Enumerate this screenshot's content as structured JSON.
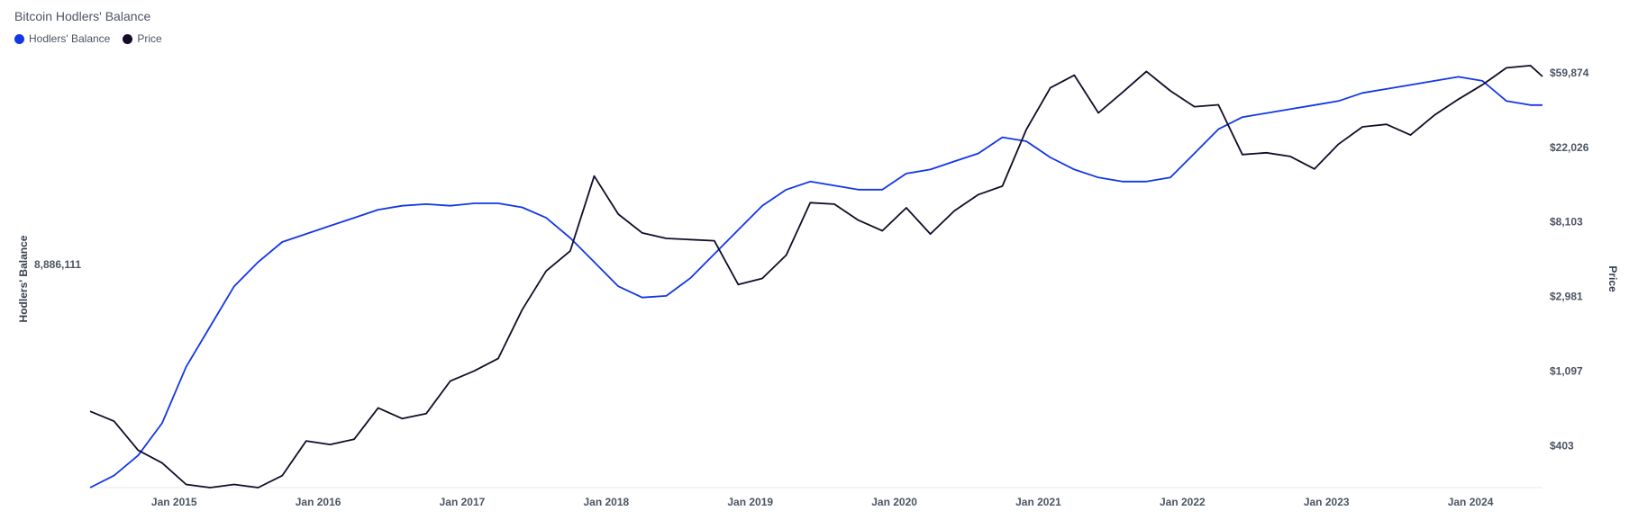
{
  "chart_data": {
    "type": "line",
    "title": "Bitcoin Hodlers' Balance",
    "colors": {
      "hodlers": "#1237e6",
      "price": "#150b28"
    },
    "x_axis": {
      "ticks": [
        "Jan 2015",
        "Jan 2016",
        "Jan 2017",
        "Jan 2018",
        "Jan 2019",
        "Jan 2020",
        "Jan 2021",
        "Jan 2022",
        "Jan 2023",
        "Jan 2024"
      ],
      "range": [
        "2014-06",
        "2024-07"
      ]
    },
    "y_left": {
      "label": "Hodlers' Balance",
      "tick_labels": [
        "8,886,111"
      ]
    },
    "y_right": {
      "label": "Price",
      "scale": "log",
      "tick_labels": [
        "$59,874",
        "$22,026",
        "$8,103",
        "$2,981",
        "$1,097",
        "$403"
      ],
      "tick_values": [
        59874,
        22026,
        8103,
        2981,
        1097,
        403
      ]
    },
    "series": [
      {
        "name": "Hodlers' Balance",
        "axis": "left",
        "points": [
          [
            "2014-06",
            6200000
          ],
          [
            "2014-08",
            6350000
          ],
          [
            "2014-10",
            6600000
          ],
          [
            "2014-12",
            7000000
          ],
          [
            "2015-02",
            7700000
          ],
          [
            "2015-04",
            8200000
          ],
          [
            "2015-06",
            8700000
          ],
          [
            "2015-08",
            9000000
          ],
          [
            "2015-10",
            9250000
          ],
          [
            "2015-12",
            9350000
          ],
          [
            "2016-02",
            9450000
          ],
          [
            "2016-04",
            9550000
          ],
          [
            "2016-06",
            9650000
          ],
          [
            "2016-08",
            9700000
          ],
          [
            "2016-10",
            9720000
          ],
          [
            "2016-12",
            9700000
          ],
          [
            "2017-02",
            9730000
          ],
          [
            "2017-04",
            9730000
          ],
          [
            "2017-06",
            9680000
          ],
          [
            "2017-08",
            9550000
          ],
          [
            "2017-10",
            9300000
          ],
          [
            "2017-12",
            9000000
          ],
          [
            "2018-02",
            8700000
          ],
          [
            "2018-04",
            8560000
          ],
          [
            "2018-06",
            8580000
          ],
          [
            "2018-08",
            8800000
          ],
          [
            "2018-10",
            9100000
          ],
          [
            "2018-12",
            9400000
          ],
          [
            "2019-02",
            9700000
          ],
          [
            "2019-04",
            9900000
          ],
          [
            "2019-06",
            10000000
          ],
          [
            "2019-08",
            9950000
          ],
          [
            "2019-10",
            9900000
          ],
          [
            "2019-12",
            9900000
          ],
          [
            "2020-02",
            10100000
          ],
          [
            "2020-04",
            10150000
          ],
          [
            "2020-06",
            10250000
          ],
          [
            "2020-08",
            10350000
          ],
          [
            "2020-10",
            10550000
          ],
          [
            "2020-12",
            10500000
          ],
          [
            "2021-02",
            10300000
          ],
          [
            "2021-04",
            10150000
          ],
          [
            "2021-06",
            10050000
          ],
          [
            "2021-08",
            10000000
          ],
          [
            "2021-10",
            10000000
          ],
          [
            "2021-12",
            10050000
          ],
          [
            "2022-02",
            10350000
          ],
          [
            "2022-04",
            10650000
          ],
          [
            "2022-06",
            10800000
          ],
          [
            "2022-08",
            10850000
          ],
          [
            "2022-10",
            10900000
          ],
          [
            "2022-12",
            10950000
          ],
          [
            "2023-02",
            11000000
          ],
          [
            "2023-04",
            11100000
          ],
          [
            "2023-06",
            11150000
          ],
          [
            "2023-08",
            11200000
          ],
          [
            "2023-10",
            11250000
          ],
          [
            "2023-12",
            11300000
          ],
          [
            "2024-02",
            11250000
          ],
          [
            "2024-04",
            11000000
          ],
          [
            "2024-06",
            10950000
          ],
          [
            "2024-07",
            10950000
          ]
        ]
      },
      {
        "name": "Price",
        "axis": "right",
        "points": [
          [
            "2014-06",
            640
          ],
          [
            "2014-08",
            560
          ],
          [
            "2014-10",
            380
          ],
          [
            "2014-12",
            320
          ],
          [
            "2015-02",
            240
          ],
          [
            "2015-04",
            230
          ],
          [
            "2015-06",
            240
          ],
          [
            "2015-08",
            230
          ],
          [
            "2015-10",
            270
          ],
          [
            "2015-12",
            430
          ],
          [
            "2016-02",
            410
          ],
          [
            "2016-04",
            440
          ],
          [
            "2016-06",
            670
          ],
          [
            "2016-08",
            580
          ],
          [
            "2016-10",
            620
          ],
          [
            "2016-12",
            960
          ],
          [
            "2017-02",
            1100
          ],
          [
            "2017-04",
            1300
          ],
          [
            "2017-06",
            2500
          ],
          [
            "2017-08",
            4200
          ],
          [
            "2017-10",
            5500
          ],
          [
            "2017-12",
            15000
          ],
          [
            "2018-02",
            9000
          ],
          [
            "2018-04",
            7000
          ],
          [
            "2018-06",
            6500
          ],
          [
            "2018-08",
            6400
          ],
          [
            "2018-10",
            6300
          ],
          [
            "2018-12",
            3500
          ],
          [
            "2019-02",
            3800
          ],
          [
            "2019-04",
            5200
          ],
          [
            "2019-06",
            10500
          ],
          [
            "2019-08",
            10300
          ],
          [
            "2019-10",
            8300
          ],
          [
            "2019-12",
            7200
          ],
          [
            "2020-02",
            9800
          ],
          [
            "2020-04",
            6900
          ],
          [
            "2020-06",
            9400
          ],
          [
            "2020-08",
            11700
          ],
          [
            "2020-10",
            13100
          ],
          [
            "2020-12",
            28000
          ],
          [
            "2021-02",
            49000
          ],
          [
            "2021-04",
            58000
          ],
          [
            "2021-06",
            35000
          ],
          [
            "2021-08",
            46000
          ],
          [
            "2021-10",
            61000
          ],
          [
            "2021-12",
            47000
          ],
          [
            "2022-02",
            38000
          ],
          [
            "2022-04",
            39000
          ],
          [
            "2022-06",
            20000
          ],
          [
            "2022-08",
            20500
          ],
          [
            "2022-10",
            19500
          ],
          [
            "2022-12",
            16500
          ],
          [
            "2023-02",
            23000
          ],
          [
            "2023-04",
            29000
          ],
          [
            "2023-06",
            30000
          ],
          [
            "2023-08",
            26000
          ],
          [
            "2023-10",
            34000
          ],
          [
            "2023-12",
            42000
          ],
          [
            "2024-02",
            51000
          ],
          [
            "2024-04",
            64000
          ],
          [
            "2024-06",
            66000
          ],
          [
            "2024-07",
            57000
          ]
        ]
      }
    ]
  }
}
